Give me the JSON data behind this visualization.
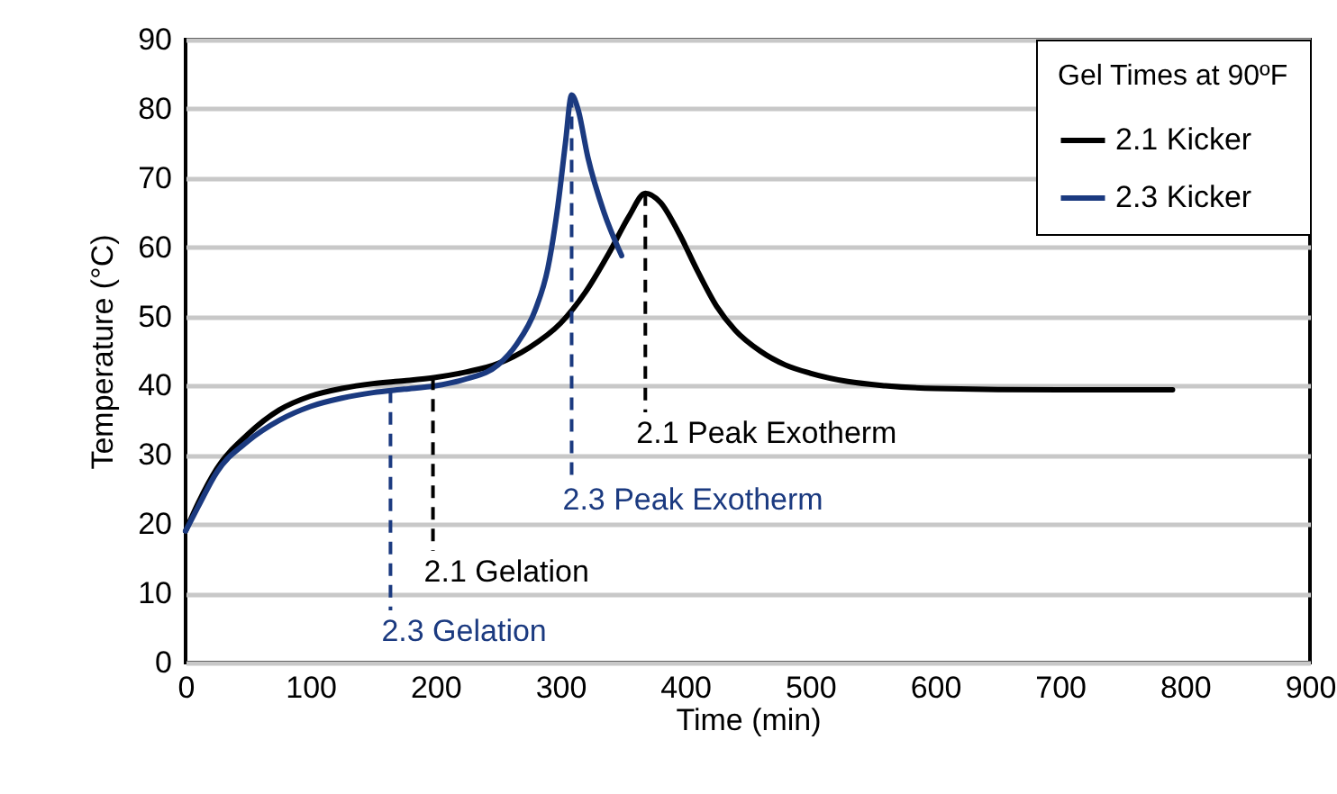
{
  "chart_data": {
    "type": "line",
    "xlabel": "Time (min)",
    "ylabel": "Temperature (°C)",
    "legend_title": "Gel Times at 90ºF",
    "xlim": [
      0,
      900
    ],
    "xticks": [
      0,
      100,
      200,
      300,
      400,
      500,
      600,
      700,
      800,
      900
    ],
    "ylim": [
      0,
      90
    ],
    "yticks": [
      0,
      10,
      20,
      30,
      40,
      50,
      60,
      70,
      80,
      90
    ],
    "grid": "y",
    "legend": "top right",
    "line_style": "solid",
    "series": [
      {
        "name": "2.1 Kicker",
        "color": "#000000",
        "x": [
          0,
          10,
          25,
          50,
          75,
          100,
          125,
          150,
          175,
          200,
          225,
          250,
          275,
          300,
          320,
          340,
          355,
          368,
          380,
          395,
          410,
          425,
          440,
          460,
          480,
          500,
          530,
          560,
          600,
          700,
          790
        ],
        "values": [
          19,
          23,
          28,
          33,
          36.5,
          38.5,
          39.6,
          40.3,
          40.7,
          41.2,
          42,
          43.2,
          45.5,
          49,
          53.5,
          59.5,
          64.5,
          67.8,
          66.5,
          62,
          56.5,
          51.5,
          48,
          45,
          43,
          41.8,
          40.6,
          40,
          39.6,
          39.4,
          39.4
        ]
      },
      {
        "name": "2.3 Kicker",
        "color": "#1b3a80",
        "x": [
          0,
          10,
          25,
          50,
          75,
          100,
          125,
          150,
          175,
          200,
          225,
          250,
          265,
          280,
          290,
          298,
          304,
          309,
          314,
          322,
          335,
          349
        ],
        "values": [
          19,
          22.5,
          27.5,
          32,
          35,
          37,
          38.2,
          39,
          39.5,
          40,
          41,
          43,
          46,
          51,
          57,
          66,
          75,
          82,
          80,
          73,
          65,
          58.8
        ]
      }
    ],
    "annotations": [
      {
        "text": "2.1 Peak Exotherm",
        "x": 368,
        "y": 67.8
      },
      {
        "text": "2.3 Peak Exotherm",
        "x": 309,
        "y": 82
      },
      {
        "text": "2.1 Gelation",
        "x": 198,
        "y": 41.2
      },
      {
        "text": "2.3 Gelation",
        "x": 164,
        "y": 39.3
      }
    ]
  }
}
